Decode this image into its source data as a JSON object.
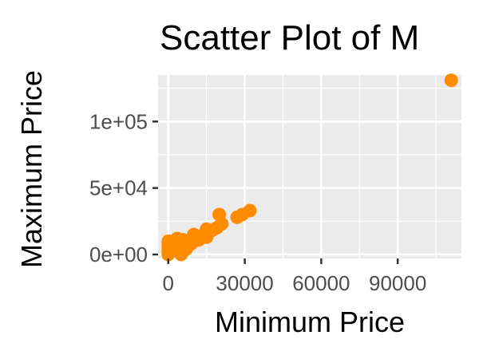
{
  "chart_data": {
    "type": "scatter",
    "title": "Scatter Plot of M",
    "xlabel": "Minimum Price",
    "ylabel": "Maximum Price",
    "xlim": [
      -4000,
      115000
    ],
    "ylim": [
      -3000,
      135000
    ],
    "x_ticks": [
      {
        "value": 0,
        "label": "0"
      },
      {
        "value": 30000,
        "label": "30000"
      },
      {
        "value": 60000,
        "label": "60000"
      },
      {
        "value": 90000,
        "label": "90000"
      }
    ],
    "y_ticks": [
      {
        "value": 0,
        "label": "0e+00"
      },
      {
        "value": 50000,
        "label": "5e+04"
      },
      {
        "value": 100000,
        "label": "1e+05"
      }
    ],
    "grid": true,
    "legend": "none",
    "colors": {
      "point": "#ff8c00",
      "panel": "#ebebeb",
      "grid": "#ffffff",
      "tick": "#333333"
    },
    "series": [
      {
        "points": [
          [
            0,
            0
          ],
          [
            0,
            3000
          ],
          [
            0,
            6000
          ],
          [
            0,
            8000
          ],
          [
            0,
            10000
          ],
          [
            500,
            2000
          ],
          [
            1000,
            4000
          ],
          [
            2000,
            5000
          ],
          [
            3000,
            7000
          ],
          [
            3500,
            12000
          ],
          [
            4000,
            9000
          ],
          [
            5000,
            1000
          ],
          [
            5000,
            0
          ],
          [
            6000,
            8000
          ],
          [
            6000,
            11000
          ],
          [
            7000,
            6000
          ],
          [
            7000,
            4000
          ],
          [
            8000,
            9000
          ],
          [
            9000,
            8000
          ],
          [
            10000,
            15000
          ],
          [
            10000,
            10000
          ],
          [
            11000,
            12000
          ],
          [
            12000,
            11000
          ],
          [
            13000,
            14000
          ],
          [
            15000,
            13000
          ],
          [
            15000,
            19000
          ],
          [
            17000,
            18000
          ],
          [
            19000,
            20000
          ],
          [
            20000,
            30000
          ],
          [
            21000,
            23000
          ],
          [
            27000,
            28000
          ],
          [
            29000,
            30000
          ],
          [
            32000,
            33000
          ],
          [
            111000,
            131000
          ]
        ]
      }
    ]
  }
}
